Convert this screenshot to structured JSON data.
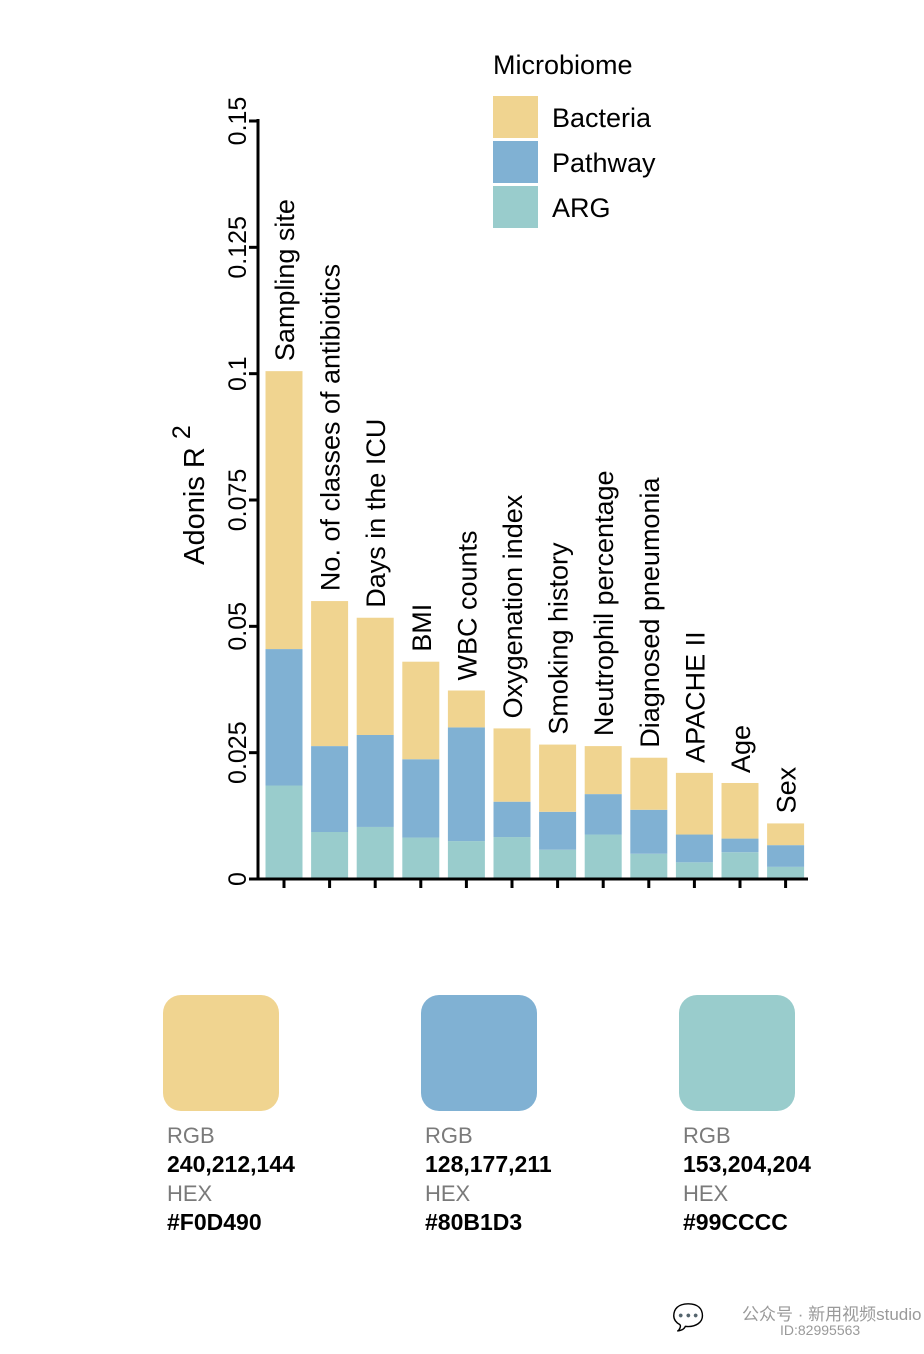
{
  "chart_data": {
    "type": "bar",
    "stacked": true,
    "ylabel": "Adonis",
    "ylabel_sup": "2",
    "ylabel_r": "R",
    "ylim": [
      0,
      0.15
    ],
    "yticks": [
      {
        "value": 0,
        "label": "0"
      },
      {
        "value": 0.025,
        "label": "0.025"
      },
      {
        "value": 0.05,
        "label": "0.05"
      },
      {
        "value": 0.075,
        "label": "0.075"
      },
      {
        "value": 0.1,
        "label": "0.1"
      },
      {
        "value": 0.125,
        "label": "0.125"
      },
      {
        "value": 0.15,
        "label": "0.15"
      }
    ],
    "categories": [
      "Sampling site",
      "No. of classes of antibiotics",
      "Days in the ICU",
      "BMI",
      "WBC counts",
      "Oxygenation index",
      "Smoking history",
      "Neutrophil percentage",
      "Diagnosed pneumonia",
      "APACHE II",
      "Age",
      "Sex"
    ],
    "legend_title": "Microbiome",
    "legend_position": "top-right",
    "series": [
      {
        "name": "ARG",
        "color": "#99CCCC",
        "values": [
          0.0185,
          0.0093,
          0.0103,
          0.0082,
          0.0075,
          0.0083,
          0.0058,
          0.0088,
          0.005,
          0.0033,
          0.0053,
          0.0024
        ]
      },
      {
        "name": "Pathway",
        "color": "#80B1D3",
        "values": [
          0.027,
          0.017,
          0.0182,
          0.0155,
          0.0225,
          0.007,
          0.0075,
          0.008,
          0.0087,
          0.0055,
          0.0027,
          0.0043
        ]
      },
      {
        "name": "Bacteria",
        "color": "#F0D490",
        "values": [
          0.055,
          0.0287,
          0.0232,
          0.0193,
          0.0073,
          0.0145,
          0.0133,
          0.0095,
          0.0103,
          0.0122,
          0.011,
          0.0043
        ]
      }
    ],
    "legend_order": [
      "Bacteria",
      "Pathway",
      "ARG"
    ]
  },
  "palette": [
    {
      "rgb_label": "RGB",
      "rgb": "240,212,144",
      "hex_label": "HEX",
      "hex": "#F0D490",
      "color": "#F0D490"
    },
    {
      "rgb_label": "RGB",
      "rgb": "128,177,211",
      "hex_label": "HEX",
      "hex": "#80B1D3",
      "color": "#80B1D3"
    },
    {
      "rgb_label": "RGB",
      "rgb": "153,204,204",
      "hex_label": "HEX",
      "hex": "#99CCCC",
      "color": "#99CCCC"
    }
  ],
  "watermark": {
    "icon": "wechat-icon",
    "name": "公众号 · 新用视频studio",
    "id": "ID:82995563"
  }
}
